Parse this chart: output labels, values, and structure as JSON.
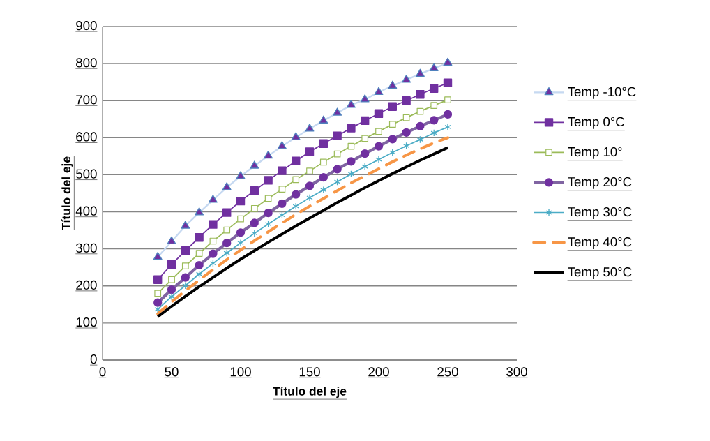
{
  "chart_data": {
    "type": "line",
    "xlabel": "Título del eje",
    "ylabel": "Título del eje",
    "x": [
      40,
      50,
      60,
      70,
      80,
      90,
      100,
      110,
      120,
      130,
      140,
      150,
      160,
      170,
      180,
      190,
      200,
      210,
      220,
      230,
      240,
      250
    ],
    "xlim": [
      0,
      300
    ],
    "xticks": [
      0,
      50,
      100,
      150,
      200,
      250,
      300
    ],
    "ylim": [
      0,
      900
    ],
    "yticks": [
      0,
      100,
      200,
      300,
      400,
      500,
      600,
      700,
      800,
      900
    ],
    "grid": "y",
    "legend": "right",
    "series": [
      {
        "name": "Temp -10°C",
        "color": "#c6d9f1",
        "marker": "triangle",
        "values": [
          278,
          320,
          362,
          398,
          432,
          466,
          496,
          524,
          551,
          577,
          601,
          624,
          646,
          667,
          688,
          703,
          723,
          740,
          756,
          772,
          787,
          802
        ]
      },
      {
        "name": "Temp 0°C",
        "color": "#7030a0",
        "marker": "square",
        "values": [
          217,
          258,
          295,
          331,
          366,
          398,
          429,
          457,
          485,
          511,
          537,
          562,
          584,
          605,
          626,
          646,
          665,
          684,
          700,
          717,
          733,
          748
        ]
      },
      {
        "name": "Temp 10°",
        "color": "#9bbb59",
        "marker": "square",
        "values": [
          180,
          217,
          254,
          288,
          321,
          351,
          381,
          409,
          436,
          461,
          487,
          510,
          534,
          556,
          577,
          598,
          617,
          636,
          654,
          671,
          687,
          702
        ]
      },
      {
        "name": "Temp 20°C",
        "color": "#8064a2",
        "marker": "circle",
        "values": [
          155,
          190,
          223,
          256,
          287,
          316,
          344,
          370,
          397,
          422,
          447,
          470,
          493,
          515,
          536,
          557,
          577,
          596,
          614,
          631,
          647,
          663
        ]
      },
      {
        "name": "Temp 30°C",
        "color": "#4bacc6",
        "marker": "cross",
        "values": [
          137,
          171,
          201,
          232,
          261,
          289,
          316,
          342,
          367,
          391,
          415,
          438,
          459,
          481,
          502,
          522,
          541,
          560,
          578,
          595,
          613,
          629
        ]
      },
      {
        "name": "Temp 40°C",
        "color": "#f79646",
        "marker": "none",
        "line_style": "dashed",
        "values": [
          125,
          157,
          187,
          216,
          244,
          271,
          297,
          322,
          346,
          370,
          393,
          415,
          436,
          457,
          478,
          497,
          516,
          535,
          553,
          570,
          586,
          600
        ]
      },
      {
        "name": "Temp 50°C",
        "color": "#000000",
        "marker": "none",
        "values": [
          117,
          145,
          172,
          198,
          223,
          248,
          272,
          295,
          318,
          340,
          362,
          383,
          404,
          425,
          445,
          465,
          484,
          503,
          521,
          539,
          556,
          573
        ]
      }
    ]
  }
}
